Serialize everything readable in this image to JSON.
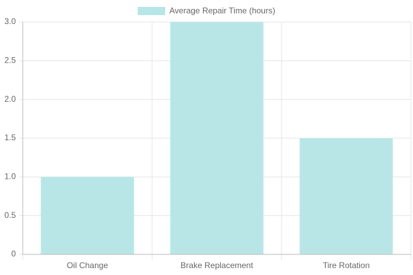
{
  "chart_data": {
    "type": "bar",
    "categories": [
      "Oil Change",
      "Brake Replacement",
      "Tire Rotation"
    ],
    "series": [
      {
        "name": "Average Repair Time (hours)",
        "color": "#b8e6e6",
        "values": [
          1,
          3,
          1.5
        ]
      }
    ],
    "ylim": [
      0,
      3
    ],
    "yticks": [
      0,
      0.5,
      {
        "value": 1,
        "label": "1.0"
      },
      1.5,
      {
        "value": 2,
        "label": "2.0"
      },
      2.5,
      {
        "value": 3,
        "label": "3.0"
      }
    ],
    "grid": true,
    "legend": "top"
  }
}
